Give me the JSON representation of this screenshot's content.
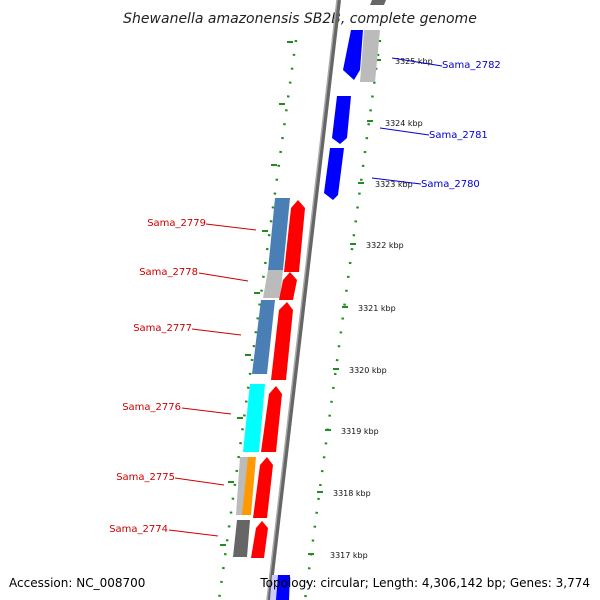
{
  "title": "Shewanella amazonensis SB2B, complete genome",
  "footer": {
    "accession": "Accession: NC_008700",
    "summary": "Topology: circular; Length: 4,306,142 bp; Genes: 3,774"
  },
  "colors": {
    "forward": "#0000ff",
    "reverse": "#ff0000",
    "steel": "#4a7fb5",
    "cyan": "#00ffff",
    "orange": "#ff9900",
    "gray": "#bbbbbb",
    "darkgray": "#666666",
    "backbone": "#888888",
    "ticks": "#228b22"
  },
  "kbp_ticks": [
    "3325 kbp",
    "3324 kbp",
    "3323 kbp",
    "3322 kbp",
    "3321 kbp",
    "3320 kbp",
    "3319 kbp",
    "3318 kbp",
    "3317 kbp"
  ],
  "genes_right": [
    "Sama_2782",
    "Sama_2781",
    "Sama_2780"
  ],
  "genes_left": [
    "Sama_2779",
    "Sama_2778",
    "Sama_2777",
    "Sama_2776",
    "Sama_2775",
    "Sama_2774"
  ]
}
